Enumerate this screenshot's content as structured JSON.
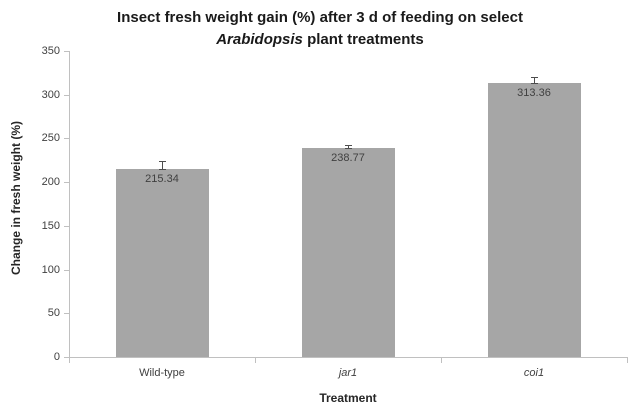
{
  "chart_title": {
    "line1": "Insect fresh weight gain (%) after 3 d of feeding on select",
    "line2_italic": "Arabidopsis",
    "line2_rest": " plant treatments"
  },
  "chart_data": {
    "type": "bar",
    "title": "Insect fresh weight gain (%) after 3 d of feeding on select Arabidopsis plant treatments",
    "categories": [
      "Wild-type",
      "jar1",
      "coi1"
    ],
    "categories_italic": [
      false,
      true,
      true
    ],
    "values": [
      215.34,
      238.77,
      313.36
    ],
    "value_labels": [
      "215.34",
      "238.77",
      "313.36"
    ],
    "error_up_approx": [
      9,
      4,
      7
    ],
    "xlabel": "Treatment",
    "ylabel": "Change in fresh weight (%)",
    "ylim": [
      0,
      350
    ],
    "ytick_step": 50,
    "yticks": [
      0,
      50,
      100,
      150,
      200,
      250,
      300,
      350
    ],
    "grid": false,
    "legend": "none",
    "colors": {
      "bar_fill": "#a6a6a6",
      "axis_line": "#c0c0c0",
      "tick_label": "#404040",
      "value_label": "#404040",
      "error_bar": "#4d4d4d",
      "title": "#1a1a1a",
      "background": "#ffffff"
    }
  }
}
